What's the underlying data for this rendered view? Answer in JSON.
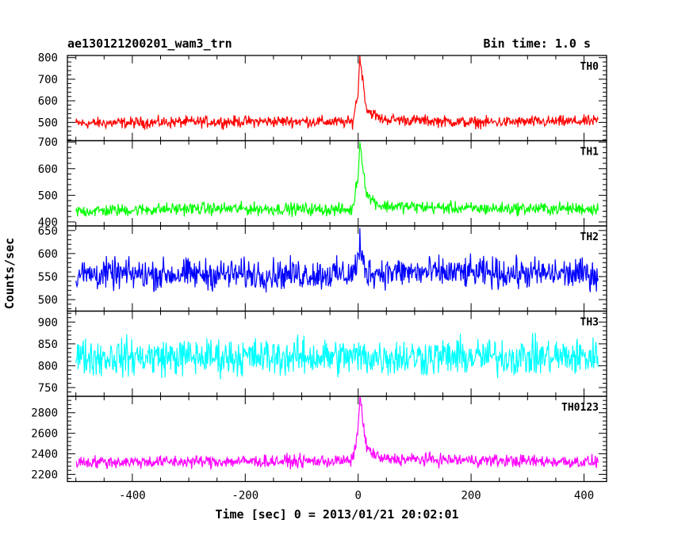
{
  "header": {
    "left_title": "ae130121200201_wam3_trn",
    "right_title": "Bin time: 1.0 s"
  },
  "chart_data": {
    "type": "line",
    "xlabel": "Time [sec] 0 = 2013/01/21 20:02:01",
    "ylabel": "Counts/sec",
    "xlim": [
      -515,
      440
    ],
    "x_range_data": [
      -500,
      425
    ],
    "bin_time_s": 1.0,
    "x_ticks": [
      -400,
      -200,
      0,
      200,
      400
    ],
    "panels": [
      {
        "name": "TH0",
        "color": "#ff0000",
        "ylim": [
          415,
          810
        ],
        "y_ticks": [
          500,
          600,
          700,
          800
        ],
        "baseline": 495,
        "noise_amplitude": 28,
        "peak": {
          "x": 3,
          "value": 810
        },
        "segments": [
          {
            "x": -500,
            "y": 495
          },
          {
            "x": -300,
            "y": 502
          },
          {
            "x": -100,
            "y": 505
          },
          {
            "x": -10,
            "y": 500
          },
          {
            "x": 0,
            "y": 640
          },
          {
            "x": 3,
            "y": 810
          },
          {
            "x": 8,
            "y": 700
          },
          {
            "x": 15,
            "y": 560
          },
          {
            "x": 40,
            "y": 515
          },
          {
            "x": 200,
            "y": 500
          },
          {
            "x": 425,
            "y": 505
          }
        ]
      },
      {
        "name": "TH1",
        "color": "#00ff00",
        "ylim": [
          385,
          705
        ],
        "y_ticks": [
          400,
          500,
          600,
          700
        ],
        "baseline": 445,
        "noise_amplitude": 25,
        "peak": {
          "x": 3,
          "value": 700
        },
        "segments": [
          {
            "x": -500,
            "y": 440
          },
          {
            "x": -300,
            "y": 450
          },
          {
            "x": -100,
            "y": 448
          },
          {
            "x": -10,
            "y": 445
          },
          {
            "x": 0,
            "y": 580
          },
          {
            "x": 3,
            "y": 700
          },
          {
            "x": 8,
            "y": 620
          },
          {
            "x": 15,
            "y": 500
          },
          {
            "x": 40,
            "y": 460
          },
          {
            "x": 200,
            "y": 450
          },
          {
            "x": 425,
            "y": 450
          }
        ]
      },
      {
        "name": "TH2",
        "color": "#0000ff",
        "ylim": [
          475,
          660
        ],
        "y_ticks": [
          500,
          550,
          600,
          650
        ],
        "baseline": 555,
        "noise_amplitude": 35,
        "peak": {
          "x": 3,
          "value": 655
        },
        "segments": [
          {
            "x": -500,
            "y": 555
          },
          {
            "x": -10,
            "y": 555
          },
          {
            "x": 3,
            "y": 600
          },
          {
            "x": 15,
            "y": 560
          },
          {
            "x": 425,
            "y": 555
          }
        ]
      },
      {
        "name": "TH3",
        "color": "#00ffff",
        "ylim": [
          730,
          925
        ],
        "y_ticks": [
          750,
          800,
          850,
          900
        ],
        "baseline": 820,
        "noise_amplitude": 45,
        "peak": null,
        "segments": [
          {
            "x": -500,
            "y": 820
          },
          {
            "x": 425,
            "y": 820
          }
        ]
      },
      {
        "name": "TH0123",
        "color": "#ff00ff",
        "ylim": [
          2130,
          2960
        ],
        "y_ticks": [
          2200,
          2400,
          2600,
          2800
        ],
        "baseline": 2320,
        "noise_amplitude": 65,
        "peak": {
          "x": 3,
          "value": 2950
        },
        "segments": [
          {
            "x": -500,
            "y": 2320
          },
          {
            "x": -10,
            "y": 2330
          },
          {
            "x": 0,
            "y": 2650
          },
          {
            "x": 3,
            "y": 2950
          },
          {
            "x": 8,
            "y": 2750
          },
          {
            "x": 15,
            "y": 2450
          },
          {
            "x": 40,
            "y": 2350
          },
          {
            "x": 425,
            "y": 2320
          }
        ]
      }
    ]
  }
}
